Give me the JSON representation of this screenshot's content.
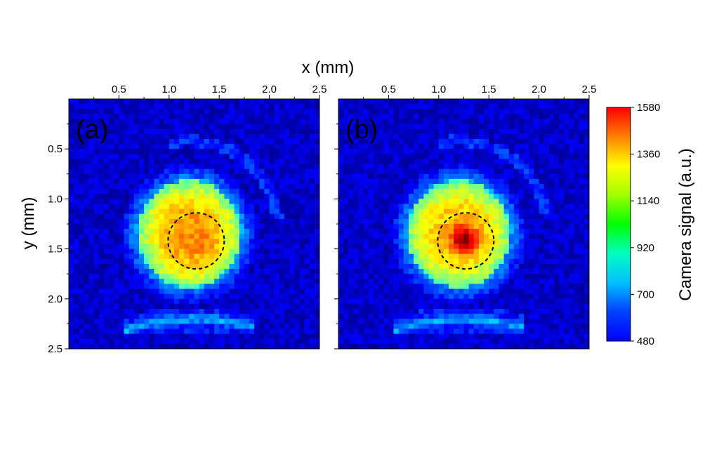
{
  "chart_data": {
    "type": "heatmap",
    "xlabel": "x (mm)",
    "ylabel": "y (mm)",
    "xlim": [
      0.0,
      2.5
    ],
    "ylim": [
      0.0,
      2.5
    ],
    "x_ticks": [
      "0.5",
      "1.0",
      "1.5",
      "2.0",
      "2.5"
    ],
    "y_ticks": [
      "0.5",
      "1.0",
      "1.5",
      "2.0",
      "2.5"
    ],
    "colorbar": {
      "label": "Camera signal (a.u.)",
      "min": 480,
      "max": 1580,
      "ticks": [
        "1580",
        "1360",
        "1140",
        "920",
        "700",
        "480"
      ],
      "colormap": "jet"
    },
    "panels": [
      {
        "label": "(a)",
        "grid_size": 50,
        "background": 560,
        "beam": {
          "center_x_mm": 1.2,
          "center_y_mm": 1.35,
          "radius_mm": 0.52,
          "core_value": 1240,
          "edge_ring_value": 780
        },
        "hot_spot": {
          "x_mm": 1.27,
          "y_mm": 1.42,
          "sigma_mm": 0.2,
          "peak_added": 60
        },
        "dashed_circle": {
          "center_x_mm": 1.27,
          "center_y_mm": 1.42,
          "radius_mm": 0.28
        }
      },
      {
        "label": "(b)",
        "grid_size": 50,
        "background": 560,
        "beam": {
          "center_x_mm": 1.2,
          "center_y_mm": 1.35,
          "radius_mm": 0.52,
          "core_value": 1240,
          "edge_ring_value": 780
        },
        "hot_spot": {
          "x_mm": 1.25,
          "y_mm": 1.4,
          "sigma_mm": 0.09,
          "peak_added": 330
        },
        "dashed_circle": {
          "center_x_mm": 1.27,
          "center_y_mm": 1.42,
          "radius_mm": 0.28
        }
      }
    ]
  }
}
